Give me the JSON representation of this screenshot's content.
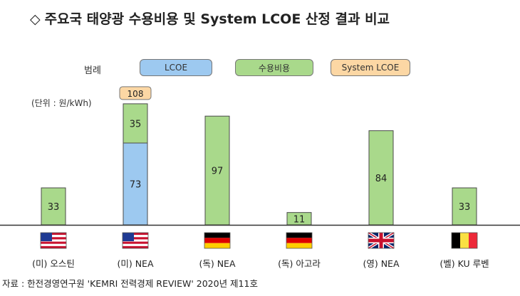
{
  "header": {
    "title": "주요국 태양광 수용비용 및 System LCOE 산정 결과 비교"
  },
  "legend": {
    "label": "범례",
    "items": [
      {
        "name": "LCOE",
        "color": "#9DC9F0"
      },
      {
        "name": "수용비용",
        "color": "#A9D98B"
      },
      {
        "name": "System LCOE",
        "color": "#FCD7A4"
      }
    ]
  },
  "unit_label": "(단위 : 원/kWh)",
  "source": "자료 : 한전경영연구원 'KEMRI 전력경제 REVIEW' 2020년 제11호",
  "colors": {
    "lcoe": "#9DC9F0",
    "acceptance": "#A9D98B",
    "system": "#FCD7A4",
    "bar_border": "#4A4A4A"
  },
  "chart_data": {
    "type": "bar",
    "stacked": true,
    "title": "주요국 태양광 수용비용 및 System LCOE 산정 결과 비교",
    "categories": [
      "(미) 오스틴",
      "(미) NEA",
      "(독) NEA",
      "(독) 아고라",
      "(영) NEA",
      "(벨) KU 루벤"
    ],
    "flags": [
      "us-flag-icon",
      "us-flag-icon",
      "germany-flag-icon",
      "germany-flag-icon",
      "uk-flag-icon",
      "belgium-flag-icon"
    ],
    "series": [
      {
        "name": "LCOE",
        "values": [
          0,
          73,
          0,
          0,
          0,
          0
        ]
      },
      {
        "name": "수용비용",
        "values": [
          33,
          35,
          97,
          11,
          84,
          33
        ]
      }
    ],
    "totals": [
      null,
      108,
      null,
      null,
      null,
      null
    ],
    "total_series_name": "System LCOE",
    "ylim": [
      0,
      120
    ],
    "grid": false,
    "legend_position": "top-left"
  }
}
